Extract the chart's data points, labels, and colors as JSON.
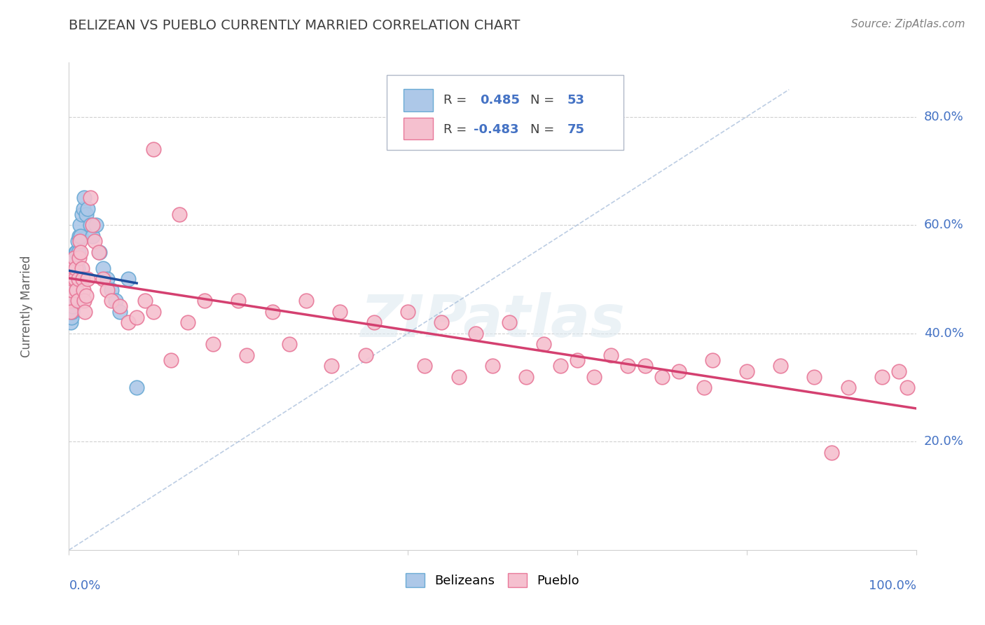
{
  "title": "BELIZEAN VS PUEBLO CURRENTLY MARRIED CORRELATION CHART",
  "source": "Source: ZipAtlas.com",
  "ylabel": "Currently Married",
  "right_ytick_labels": [
    "20.0%",
    "40.0%",
    "60.0%",
    "80.0%"
  ],
  "right_yticks": [
    0.2,
    0.4,
    0.6,
    0.8
  ],
  "xlim": [
    0.0,
    1.0
  ],
  "ylim": [
    0.0,
    0.9
  ],
  "blue_R": "0.485",
  "blue_N": "53",
  "pink_R": "-0.483",
  "pink_N": "75",
  "blue_color": "#adc8e8",
  "blue_edge_color": "#6aaad4",
  "pink_color": "#f5c0cf",
  "pink_edge_color": "#e87899",
  "trend_blue_color": "#1f4e9e",
  "trend_pink_color": "#d44070",
  "dash_color": "#a0b8d8",
  "legend_label_blue": "Belizeans",
  "legend_label_pink": "Pueblo",
  "blue_label_color": "#4472c4",
  "watermark_color": "#d8e8f0",
  "grid_color": "#d0d0d0",
  "title_color": "#404040",
  "source_color": "#808080",
  "axis_label_color": "#606060",
  "blue_x": [
    0.001,
    0.001,
    0.001,
    0.001,
    0.002,
    0.002,
    0.002,
    0.002,
    0.002,
    0.002,
    0.003,
    0.003,
    0.003,
    0.003,
    0.003,
    0.004,
    0.004,
    0.004,
    0.004,
    0.005,
    0.005,
    0.005,
    0.006,
    0.006,
    0.007,
    0.007,
    0.007,
    0.008,
    0.008,
    0.009,
    0.009,
    0.01,
    0.01,
    0.011,
    0.012,
    0.013,
    0.014,
    0.015,
    0.017,
    0.018,
    0.02,
    0.022,
    0.025,
    0.028,
    0.032,
    0.036,
    0.04,
    0.045,
    0.05,
    0.055,
    0.06,
    0.07,
    0.08
  ],
  "blue_y": [
    0.44,
    0.46,
    0.48,
    0.5,
    0.42,
    0.44,
    0.46,
    0.48,
    0.5,
    0.52,
    0.43,
    0.45,
    0.47,
    0.49,
    0.52,
    0.44,
    0.46,
    0.5,
    0.54,
    0.45,
    0.48,
    0.52,
    0.46,
    0.5,
    0.47,
    0.51,
    0.54,
    0.49,
    0.55,
    0.5,
    0.55,
    0.52,
    0.57,
    0.55,
    0.58,
    0.6,
    0.58,
    0.62,
    0.63,
    0.65,
    0.62,
    0.63,
    0.6,
    0.58,
    0.6,
    0.55,
    0.52,
    0.5,
    0.48,
    0.46,
    0.44,
    0.5,
    0.3
  ],
  "pink_x": [
    0.001,
    0.002,
    0.003,
    0.004,
    0.005,
    0.006,
    0.007,
    0.008,
    0.009,
    0.01,
    0.011,
    0.012,
    0.013,
    0.014,
    0.015,
    0.016,
    0.017,
    0.018,
    0.019,
    0.02,
    0.022,
    0.025,
    0.028,
    0.03,
    0.035,
    0.04,
    0.045,
    0.05,
    0.06,
    0.07,
    0.08,
    0.09,
    0.1,
    0.12,
    0.14,
    0.16,
    0.2,
    0.24,
    0.28,
    0.32,
    0.36,
    0.4,
    0.44,
    0.48,
    0.52,
    0.56,
    0.6,
    0.64,
    0.68,
    0.72,
    0.76,
    0.8,
    0.84,
    0.88,
    0.92,
    0.96,
    0.98,
    0.99,
    0.1,
    0.13,
    0.17,
    0.21,
    0.26,
    0.31,
    0.35,
    0.42,
    0.46,
    0.5,
    0.54,
    0.58,
    0.62,
    0.66,
    0.7,
    0.75,
    0.9
  ],
  "pink_y": [
    0.46,
    0.44,
    0.48,
    0.52,
    0.5,
    0.54,
    0.5,
    0.52,
    0.48,
    0.46,
    0.5,
    0.54,
    0.57,
    0.55,
    0.52,
    0.5,
    0.48,
    0.46,
    0.44,
    0.47,
    0.5,
    0.65,
    0.6,
    0.57,
    0.55,
    0.5,
    0.48,
    0.46,
    0.45,
    0.42,
    0.43,
    0.46,
    0.44,
    0.35,
    0.42,
    0.46,
    0.46,
    0.44,
    0.46,
    0.44,
    0.42,
    0.44,
    0.42,
    0.4,
    0.42,
    0.38,
    0.35,
    0.36,
    0.34,
    0.33,
    0.35,
    0.33,
    0.34,
    0.32,
    0.3,
    0.32,
    0.33,
    0.3,
    0.74,
    0.62,
    0.38,
    0.36,
    0.38,
    0.34,
    0.36,
    0.34,
    0.32,
    0.34,
    0.32,
    0.34,
    0.32,
    0.34,
    0.32,
    0.3,
    0.18
  ]
}
